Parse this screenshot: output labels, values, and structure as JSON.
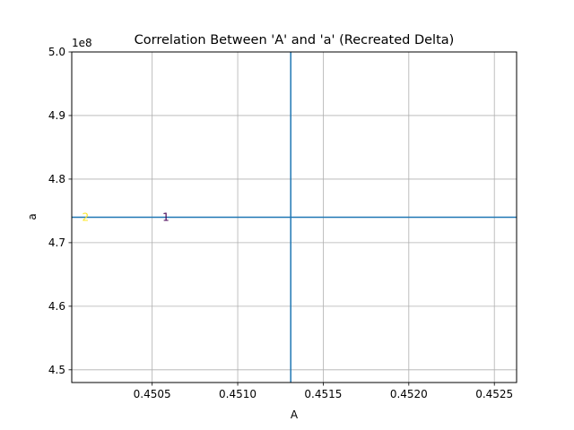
{
  "chart_data": {
    "type": "line",
    "title": "Correlation Between 'A' and 'a' (Recreated Delta)",
    "xlabel": "A",
    "ylabel": "a",
    "xlim": [
      0.45003,
      0.45263
    ],
    "ylim": [
      448000000,
      500000000
    ],
    "y_offset_label": "1e8",
    "xticks": [
      0.4505,
      0.451,
      0.4515,
      0.452,
      0.4525
    ],
    "xtick_labels": [
      "0.4505",
      "0.4510",
      "0.4515",
      "0.4520",
      "0.4525"
    ],
    "yticks": [
      450000000,
      460000000,
      470000000,
      480000000,
      490000000,
      500000000
    ],
    "ytick_labels": [
      "4.5",
      "4.6",
      "4.7",
      "4.8",
      "4.9",
      "5.0"
    ],
    "grid": true,
    "reference_lines": {
      "vertical_x": 0.45131,
      "horizontal_y": 474000000,
      "color": "#1f77b4"
    },
    "points": [
      {
        "label": "1",
        "x": 0.45058,
        "y": 474000000,
        "color": "#440154"
      },
      {
        "label": "2",
        "x": 0.45011,
        "y": 474000000,
        "color": "#fde725"
      }
    ]
  }
}
